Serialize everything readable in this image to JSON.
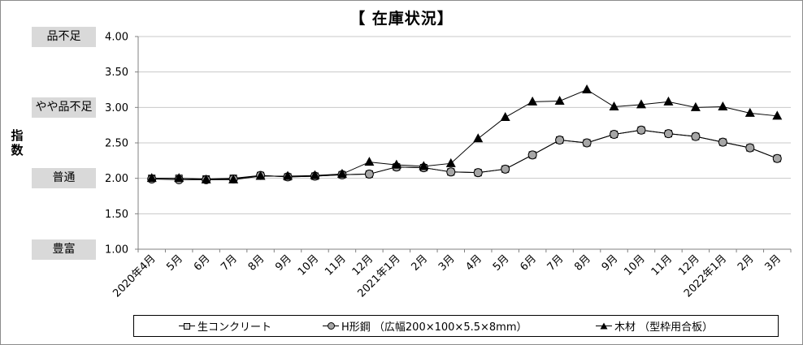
{
  "chart_data": {
    "type": "line",
    "title": "【 在庫状況】",
    "ylabel": "指数",
    "ylim": [
      1.0,
      4.0
    ],
    "yticks": [
      "1.00",
      "1.50",
      "2.00",
      "2.50",
      "3.00",
      "3.50",
      "4.00"
    ],
    "y_categories": [
      {
        "label": "品不足",
        "value": 4.0
      },
      {
        "label": "やや品不足",
        "value": 3.0
      },
      {
        "label": "普通",
        "value": 2.0
      },
      {
        "label": "豊富",
        "value": 1.0
      }
    ],
    "categories": [
      "2020年4月",
      "5月",
      "6月",
      "7月",
      "8月",
      "9月",
      "10月",
      "11月",
      "12月",
      "2021年1月",
      "2月",
      "3月",
      "4月",
      "5月",
      "6月",
      "7月",
      "8月",
      "9月",
      "10月",
      "11月",
      "12月",
      "2022年1月",
      "2月",
      "3月"
    ],
    "series": [
      {
        "name": "生コンクリート",
        "marker": "square",
        "color": "#d9d9d9",
        "values": [
          2.0,
          2.0,
          1.99,
          2.0,
          2.04,
          2.02,
          2.03,
          2.05,
          2.06,
          2.16,
          2.15,
          2.09,
          2.08,
          2.13,
          2.33,
          2.54,
          2.5,
          2.62,
          2.68,
          2.63,
          2.59,
          2.51,
          2.43,
          2.28
        ]
      },
      {
        "name": "H形鋼 （広幅200×100×5.5×8mm）",
        "marker": "circle",
        "color": "#a6a6a6",
        "values": [
          1.99,
          1.98,
          1.98,
          1.99,
          2.04,
          2.02,
          2.03,
          2.05,
          2.06,
          2.16,
          2.15,
          2.09,
          2.08,
          2.13,
          2.33,
          2.54,
          2.5,
          2.62,
          2.68,
          2.63,
          2.59,
          2.51,
          2.43,
          2.28
        ]
      },
      {
        "name": "木材 （型枠用合板）",
        "marker": "triangle",
        "color": "#000000",
        "values": [
          2.0,
          2.0,
          1.98,
          1.98,
          2.03,
          2.03,
          2.04,
          2.06,
          2.23,
          2.19,
          2.17,
          2.21,
          2.56,
          2.86,
          3.08,
          3.09,
          3.25,
          3.01,
          3.04,
          3.08,
          3.0,
          3.01,
          2.92,
          2.88
        ]
      }
    ],
    "grid": true,
    "legend": "bottom"
  }
}
